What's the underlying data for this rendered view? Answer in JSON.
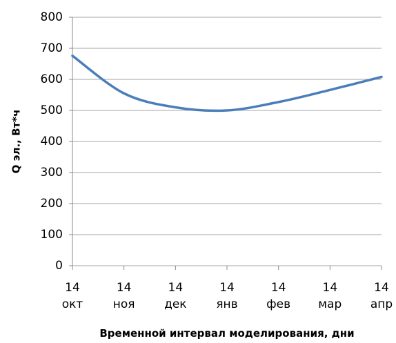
{
  "chart_data": {
    "type": "line",
    "y_label": "Q эл., Вт*ч",
    "x_label": "Временной интервал моделирования, дни",
    "categories": [
      "14 окт",
      "14 ноя",
      "14 дек",
      "14 янв",
      "14 фев",
      "14 мар",
      "14 апр"
    ],
    "series": [
      {
        "name": "Q эл.",
        "color": "#4a7ebb",
        "values": [
          676,
          555,
          510,
          500,
          527,
          566,
          608
        ]
      }
    ],
    "ylim": [
      0,
      800
    ],
    "yticks": [
      0,
      100,
      200,
      300,
      400,
      500,
      600,
      700,
      800
    ],
    "grid": true
  }
}
